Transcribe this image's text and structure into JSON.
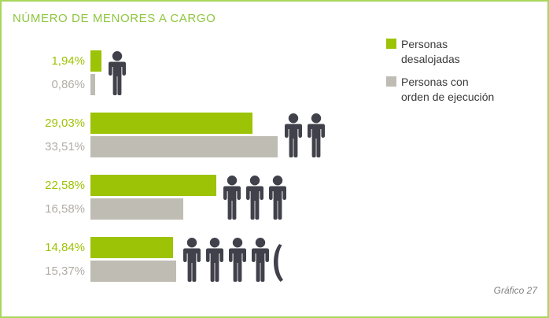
{
  "title": "NÚMERO DE MENORES A CARGO",
  "caption": "Gráfico 27",
  "colors": {
    "frame_border": "#a9d65c",
    "title_green": "#8ec63f",
    "bar_green": "#9cc306",
    "bar_gray": "#bfbcb3",
    "label_green": "#9cc306",
    "label_gray": "#b1ada5",
    "person_icon": "#41414b",
    "legend_text": "#3a3a3a"
  },
  "legend": [
    {
      "label": "Personas desalojadas",
      "lines": [
        "Personas",
        "desalojadas"
      ],
      "color": "#9cc306"
    },
    {
      "label": "Personas con orden de ejecución",
      "lines": [
        "Personas con",
        "orden de ejecución"
      ],
      "color": "#bfbcb3"
    }
  ],
  "chart_data": {
    "type": "bar",
    "orientation": "horizontal",
    "title": "NÚMERO DE MENORES A CARGO",
    "unit": "%",
    "xlim": [
      0,
      35
    ],
    "grid": false,
    "legend_position": "top-right",
    "categories_shown_as_person_icons": [
      {
        "persons": 1,
        "partial_extra": false
      },
      {
        "persons": 2,
        "partial_extra": false
      },
      {
        "persons": 3,
        "partial_extra": false
      },
      {
        "persons": 4,
        "partial_extra": true
      }
    ],
    "series": [
      {
        "name": "Personas desalojadas",
        "color": "#9cc306",
        "values": [
          1.94,
          29.03,
          22.58,
          14.84
        ],
        "labels": [
          "1,94%",
          "29,03%",
          "22,58%",
          "14,84%"
        ]
      },
      {
        "name": "Personas con orden de ejecución",
        "color": "#bfbcb3",
        "values": [
          0.86,
          33.51,
          16.58,
          15.37
        ],
        "labels": [
          "0,86%",
          "33,51%",
          "16,58%",
          "15,37%"
        ]
      }
    ]
  }
}
